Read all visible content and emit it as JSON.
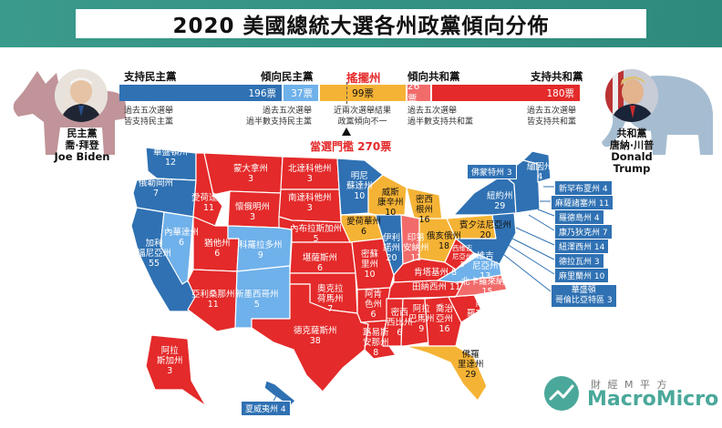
{
  "title": "2020 美國總統大選各州政黨傾向分佈",
  "colors": {
    "strong_dem": "#2f71b3",
    "lean_dem": "#6fb1ea",
    "swing": "#f5b335",
    "lean_rep": "#f25a5a",
    "strong_rep": "#e42a2a",
    "brand": "#3a9a8c"
  },
  "header": {
    "strong_dem": "支持民主黨",
    "lean_dem": "傾向民主黨",
    "swing": "搖擺州",
    "lean_rep": "傾向共和黨",
    "strong_rep": "支持共和黨"
  },
  "bars": {
    "strong_dem": "196票",
    "lean_dem": "37票",
    "swing": "99票",
    "lean_rep": "26票",
    "strong_rep": "180票"
  },
  "notes": {
    "strong_dem": "過去五次選舉\n皆支持民主黨",
    "lean_dem": "過去五次選舉\n過半數支持民主黨",
    "swing": "近兩次選舉結果\n政黨傾向不一",
    "lean_rep": "過去五次選舉\n過半數支持共和黨",
    "strong_rep": "過去五次選舉\n皆支持共和黨"
  },
  "threshold": "當選門檻 270票",
  "dem_candidate": {
    "party": "民主黨",
    "name_zh": "喬·拜登",
    "name_en": "Joe Biden",
    "party_icon": "donkey-icon"
  },
  "rep_candidate": {
    "party": "共和黨",
    "name_zh": "唐納·川普",
    "name_en": "Donald Trump",
    "party_icon": "elephant-icon"
  },
  "states": {
    "wa": {
      "name": "華盛頓州",
      "ev": "12"
    },
    "or": {
      "name": "俄勒岡州",
      "ev": "7"
    },
    "ca": {
      "name": "加利\n福尼亞州",
      "ev": "55"
    },
    "nv": {
      "name": "內華達州",
      "ev": "6"
    },
    "id": {
      "name": "愛荷達州",
      "ev": "11"
    },
    "mt": {
      "name": "蒙大拿州",
      "ev": "3"
    },
    "wy": {
      "name": "懷俄明州",
      "ev": "3"
    },
    "ut": {
      "name": "猶他州",
      "ev": "6"
    },
    "az": {
      "name": "亞利桑那州",
      "ev": "11"
    },
    "co": {
      "name": "科羅拉多州",
      "ev": "9"
    },
    "nm": {
      "name": "新墨西哥州",
      "ev": "5"
    },
    "nd": {
      "name": "北達科他州",
      "ev": "3"
    },
    "sd": {
      "name": "南達科他州",
      "ev": "3"
    },
    "ne": {
      "name": "內布拉斯加州",
      "ev": "5"
    },
    "ks": {
      "name": "堪薩斯州",
      "ev": "6"
    },
    "ok": {
      "name": "奧克拉\n荷馬州",
      "ev": "7"
    },
    "tx": {
      "name": "德克薩斯州",
      "ev": "38"
    },
    "mn": {
      "name": "明尼\n蘇達州",
      "ev": "10"
    },
    "ia": {
      "name": "愛荷華州",
      "ev": "6"
    },
    "mo": {
      "name": "密蘇\n里州",
      "ev": "10"
    },
    "ar": {
      "name": "阿肯\n色州",
      "ev": "6"
    },
    "la": {
      "name": "路易斯\n安那州",
      "ev": "8"
    },
    "wi": {
      "name": "威斯\n康辛州",
      "ev": "10"
    },
    "il": {
      "name": "伊利\n諾州",
      "ev": "20"
    },
    "mi": {
      "name": "密西\n根州",
      "ev": "16"
    },
    "in": {
      "name": "印第\n安納州",
      "ev": "11"
    },
    "oh": {
      "name": "俄亥俄州",
      "ev": "18"
    },
    "ky": {
      "name": "肯塔基州",
      "ev": "8"
    },
    "tn": {
      "name": "田納西州",
      "ev": "11"
    },
    "ms": {
      "name": "密西\n西比州",
      "ev": "6"
    },
    "al": {
      "name": "阿拉\n巴馬州",
      "ev": "9"
    },
    "ga": {
      "name": "喬治\n亞州",
      "ev": "16"
    },
    "fl": {
      "name": "佛羅\n里達州",
      "ev": "29"
    },
    "sc": {
      "name": "南卡\n羅來納州",
      "ev": "9"
    },
    "nc": {
      "name": "北卡羅來納州",
      "ev": "15"
    },
    "va": {
      "name": "維吉\n尼亞州",
      "ev": "13"
    },
    "wv": {
      "name": "西維吉\n尼亞州",
      "ev": "5"
    },
    "pa": {
      "name": "賓夕法尼亞州",
      "ev": "20"
    },
    "ny": {
      "name": "紐約州",
      "ev": "29"
    },
    "me": {
      "name": "緬因州",
      "ev": "4"
    },
    "ak": {
      "name": "阿拉\n斯加州",
      "ev": "3"
    },
    "vt": "佛蒙特州 3",
    "nh": "新罕布夏州 4",
    "ma": "麻薩諸塞州 11",
    "ri": "羅德島州 4",
    "ct": "康乃狄克州 7",
    "nj": "紐澤西州 14",
    "de": "德拉瓦州 3",
    "md": "麻里蘭州 10",
    "dc": "華盛頓\n哥倫比亞特區 3",
    "hi": "夏威夷州 4"
  },
  "logo": {
    "top": "財 經 M 平 方",
    "brand": "MacroMicro",
    "icon": "macromicro-logo-icon"
  }
}
